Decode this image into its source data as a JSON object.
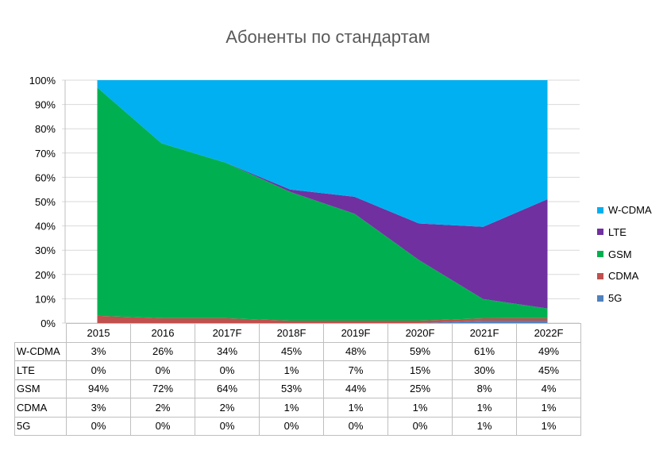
{
  "chart_data": {
    "type": "area",
    "stacked": "percent",
    "title": "Абоненты по стандартам",
    "categories": [
      "2015",
      "2016",
      "2017F",
      "2018F",
      "2019F",
      "2020F",
      "2021F",
      "2022F"
    ],
    "yticks": [
      "0%",
      "10%",
      "20%",
      "30%",
      "40%",
      "50%",
      "60%",
      "70%",
      "80%",
      "90%",
      "100%"
    ],
    "ylim": [
      0,
      100
    ],
    "grid": true,
    "legend": "right",
    "series": [
      {
        "name": "W-CDMA",
        "color": "#00b0f0",
        "values": [
          3,
          26,
          34,
          45,
          48,
          59,
          61,
          49
        ],
        "labels": [
          "3%",
          "26%",
          "34%",
          "45%",
          "48%",
          "59%",
          "61%",
          "49%"
        ]
      },
      {
        "name": "LTE",
        "color": "#7030a0",
        "values": [
          0,
          0,
          0,
          1,
          7,
          15,
          30,
          45
        ],
        "labels": [
          "0%",
          "0%",
          "0%",
          "1%",
          "7%",
          "15%",
          "30%",
          "45%"
        ]
      },
      {
        "name": "GSM",
        "color": "#00b050",
        "values": [
          94,
          72,
          64,
          53,
          44,
          25,
          8,
          4
        ],
        "labels": [
          "94%",
          "72%",
          "64%",
          "53%",
          "44%",
          "25%",
          "8%",
          "4%"
        ]
      },
      {
        "name": "CDMA",
        "color": "#c0504d",
        "values": [
          3,
          2,
          2,
          1,
          1,
          1,
          1,
          1
        ],
        "labels": [
          "3%",
          "2%",
          "2%",
          "1%",
          "1%",
          "1%",
          "1%",
          "1%"
        ]
      },
      {
        "name": "5G",
        "color": "#4f81bd",
        "values": [
          0,
          0,
          0,
          0,
          0,
          0,
          1,
          1
        ],
        "labels": [
          "0%",
          "0%",
          "0%",
          "0%",
          "0%",
          "0%",
          "1%",
          "1%"
        ]
      }
    ]
  }
}
